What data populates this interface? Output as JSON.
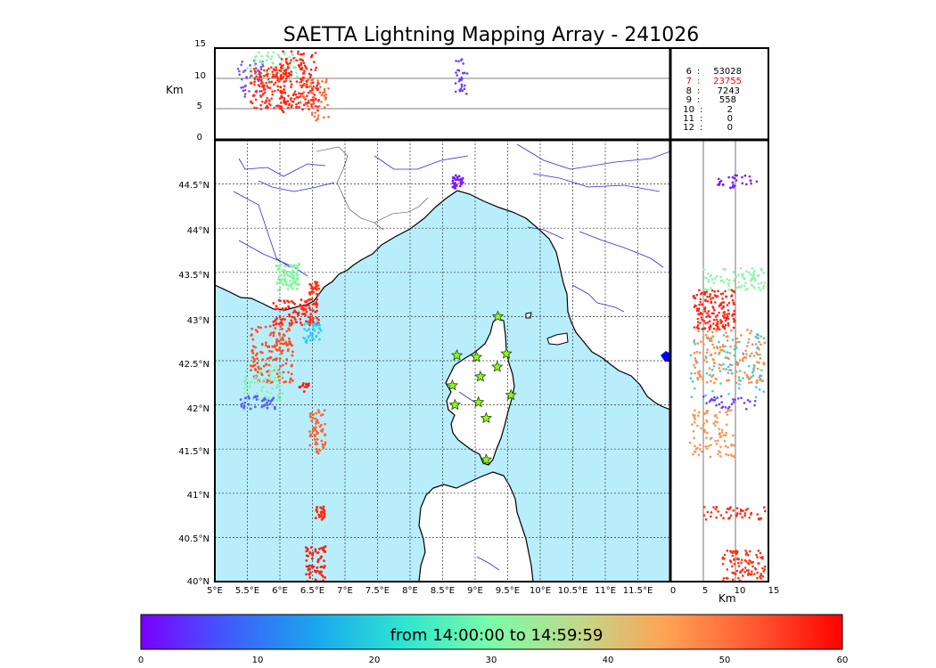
{
  "title": "SAETTA Lightning Mapping Array - 241026",
  "colors": {
    "sea": "#b8eefc",
    "land": "#ffffff",
    "river": "#2b2bd6",
    "grid": "#333333",
    "station": "#8ef51f",
    "highlight_row": "#ff0000"
  },
  "chart_data": [
    {
      "type": "scatter",
      "panel": "plan-view map",
      "x_ticks": [
        "5°E",
        "5.5°E",
        "6°E",
        "6.5°E",
        "7°E",
        "7.5°E",
        "8°E",
        "8.5°E",
        "9°E",
        "9.5°E",
        "10°E",
        "10.5°E",
        "11°E",
        "11.5°E"
      ],
      "y_ticks": [
        "40°N",
        "40.5°N",
        "41°N",
        "41.5°N",
        "42°N",
        "42.5°N",
        "43°N",
        "43.5°N",
        "44°N",
        "44.5°N"
      ],
      "xlim": [
        5,
        12
      ],
      "ylim": [
        40,
        45
      ],
      "grid": true,
      "stations": [
        [
          9.35,
          43.0
        ],
        [
          8.72,
          42.56
        ],
        [
          9.02,
          42.54
        ],
        [
          9.48,
          42.58
        ],
        [
          9.34,
          42.43
        ],
        [
          9.08,
          42.32
        ],
        [
          8.65,
          42.22
        ],
        [
          9.55,
          42.11
        ],
        [
          8.69,
          42.0
        ],
        [
          9.05,
          42.03
        ],
        [
          9.17,
          41.85
        ],
        [
          9.17,
          41.38
        ]
      ],
      "clusters": [
        {
          "lon": [
            5.95,
            6.3
          ],
          "lat": [
            43.3,
            43.6
          ],
          "color": "#86f7a3",
          "n": 90
        },
        {
          "lon": [
            6.45,
            6.6
          ],
          "lat": [
            43.25,
            43.4
          ],
          "color": "#ff3010",
          "n": 25
        },
        {
          "lon": [
            5.9,
            6.6
          ],
          "lat": [
            42.9,
            43.2
          ],
          "color": "#ff2a15",
          "n": 110
        },
        {
          "lon": [
            6.35,
            6.65
          ],
          "lat": [
            42.7,
            42.95
          ],
          "color": "#2ed0ff",
          "n": 40
        },
        {
          "lon": [
            5.55,
            6.2
          ],
          "lat": [
            42.25,
            42.9
          ],
          "color": "#ff4f20",
          "n": 150
        },
        {
          "lon": [
            5.45,
            6.05
          ],
          "lat": [
            42.05,
            42.45
          ],
          "color": "#8ef0b0",
          "n": 70
        },
        {
          "lon": [
            5.4,
            5.95
          ],
          "lat": [
            41.95,
            42.1
          ],
          "color": "#5560ff",
          "n": 40
        },
        {
          "lon": [
            6.3,
            6.45
          ],
          "lat": [
            42.15,
            42.25
          ],
          "color": "#ff1a10",
          "n": 15
        },
        {
          "lon": [
            6.45,
            6.7
          ],
          "lat": [
            41.45,
            41.95
          ],
          "color": "#ff6630",
          "n": 60
        },
        {
          "lon": [
            6.55,
            6.7
          ],
          "lat": [
            40.7,
            40.85
          ],
          "color": "#ff2a12",
          "n": 30
        },
        {
          "lon": [
            6.4,
            6.7
          ],
          "lat": [
            40.0,
            40.4
          ],
          "color": "#ff2010",
          "n": 70
        },
        {
          "lon": [
            8.65,
            8.85
          ],
          "lat": [
            44.45,
            44.6
          ],
          "color": "#7a1cff",
          "n": 35
        }
      ]
    },
    {
      "type": "scatter",
      "panel": "longitude-altitude",
      "y_label": "Km",
      "y_ticks": [
        "0",
        "5",
        "10",
        "15"
      ],
      "ylim": [
        0,
        15
      ],
      "clusters": [
        {
          "lon": [
            5.35,
            5.75
          ],
          "alt": [
            7,
            13
          ],
          "color": "#6f4dff",
          "n": 40
        },
        {
          "lon": [
            5.5,
            6.3
          ],
          "alt": [
            9,
            14.5
          ],
          "color": "#8ef0b0",
          "n": 70
        },
        {
          "lon": [
            5.55,
            6.1
          ],
          "alt": [
            5,
            12
          ],
          "color": "#ff3015",
          "n": 140
        },
        {
          "lon": [
            6.0,
            6.6
          ],
          "alt": [
            4.5,
            14.5
          ],
          "color": "#ff2010",
          "n": 170
        },
        {
          "lon": [
            6.3,
            6.75
          ],
          "alt": [
            3,
            10
          ],
          "color": "#ff6a35",
          "n": 60
        },
        {
          "lon": [
            8.7,
            8.88
          ],
          "alt": [
            7.5,
            13.5
          ],
          "color": "#6a3cff",
          "n": 30
        }
      ]
    },
    {
      "type": "scatter",
      "panel": "altitude-latitude",
      "x_label": "Km",
      "x_ticks": [
        "0",
        "5",
        "10",
        "15"
      ],
      "xlim": [
        0,
        15
      ],
      "clusters": [
        {
          "alt": [
            7,
            14
          ],
          "lat": [
            44.45,
            44.6
          ],
          "color": "#7a1cff",
          "n": 30
        },
        {
          "alt": [
            5,
            14.5
          ],
          "lat": [
            43.3,
            43.55
          ],
          "color": "#8ef5a8",
          "n": 80
        },
        {
          "alt": [
            3.5,
            10
          ],
          "lat": [
            42.85,
            43.3
          ],
          "color": "#ff2515",
          "n": 160
        },
        {
          "alt": [
            3.5,
            14.5
          ],
          "lat": [
            42.25,
            42.85
          ],
          "color": "#ff8a40",
          "n": 150
        },
        {
          "alt": [
            3,
            14.5
          ],
          "lat": [
            42.05,
            42.8
          ],
          "color": "#30d0e0",
          "n": 70
        },
        {
          "alt": [
            5,
            13
          ],
          "lat": [
            41.95,
            42.1
          ],
          "color": "#6a3cff",
          "n": 30
        },
        {
          "alt": [
            3,
            10
          ],
          "lat": [
            41.4,
            41.95
          ],
          "color": "#ff9350",
          "n": 90
        },
        {
          "alt": [
            5,
            14.5
          ],
          "lat": [
            40.7,
            40.85
          ],
          "color": "#ff2a12",
          "n": 45
        },
        {
          "alt": [
            8,
            14.5
          ],
          "lat": [
            40.0,
            40.35
          ],
          "color": "#ff3010",
          "n": 100
        }
      ]
    },
    {
      "type": "table",
      "panel": "station count",
      "rows": [
        {
          "stations": "6",
          "sep": ":",
          "count": "53028"
        },
        {
          "stations": "7",
          "sep": ":",
          "count": "23755"
        },
        {
          "stations": "8",
          "sep": ":",
          "count": "7243"
        },
        {
          "stations": "9",
          "sep": ":",
          "count": "558"
        },
        {
          "stations": "10",
          "sep": ":",
          "count": "2"
        },
        {
          "stations": "11",
          "sep": ":",
          "count": "0"
        },
        {
          "stations": "12",
          "sep": ":",
          "count": "0"
        }
      ]
    },
    {
      "type": "heatmap",
      "panel": "colorbar",
      "label": "from 14:00:00 to 14:59:59",
      "ticks": [
        "0",
        "10",
        "20",
        "30",
        "40",
        "50",
        "60"
      ],
      "range": [
        0,
        60
      ],
      "colorscale": [
        "#7a00ff",
        "#3f5cfc",
        "#1aa7ee",
        "#2ee5d0",
        "#7cfca8",
        "#c0d98a",
        "#ffa255",
        "#ff5830",
        "#ff0000"
      ]
    }
  ]
}
